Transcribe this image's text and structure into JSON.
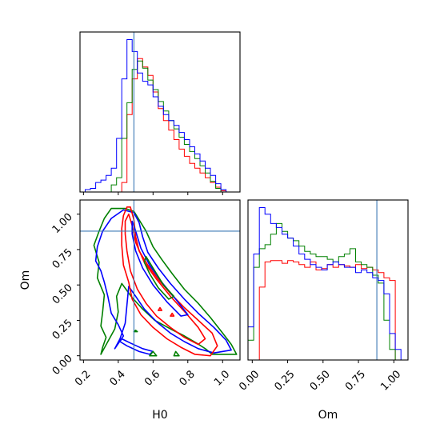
{
  "chart_data": {
    "type": "corner",
    "parameters": [
      "H0",
      "Om"
    ],
    "truths": {
      "H0": 0.49,
      "Om": 0.88
    },
    "colors": {
      "red": "#ff0000",
      "green": "#008000",
      "blue": "#0000ff",
      "truth": "#3b78b5"
    },
    "axes": {
      "H0": {
        "label": "H0",
        "range": [
          0.18,
          1.1
        ],
        "ticks": [
          0.2,
          0.4,
          0.6,
          0.8,
          1.0
        ],
        "tick_labels": [
          "0.2",
          "0.4",
          "0.6",
          "0.8",
          "1.0"
        ]
      },
      "Om": {
        "label": "Om",
        "range": [
          -0.03,
          1.1
        ],
        "ticks": [
          0.0,
          0.25,
          0.5,
          0.75,
          1.0
        ],
        "tick_labels": [
          "0.00",
          "0.25",
          "0.50",
          "0.75",
          "1.00"
        ]
      }
    },
    "histograms": {
      "H0": {
        "bin_edges": [
          0.18,
          0.21,
          0.24,
          0.27,
          0.3,
          0.33,
          0.36,
          0.39,
          0.42,
          0.45,
          0.48,
          0.51,
          0.54,
          0.57,
          0.6,
          0.63,
          0.66,
          0.69,
          0.72,
          0.75,
          0.78,
          0.81,
          0.84,
          0.87,
          0.9,
          0.93,
          0.96,
          0.99,
          1.02,
          1.05,
          1.08
        ],
        "series": [
          {
            "color": "red",
            "counts": [
              0,
              0,
              0,
              0,
              0,
              0,
              0,
              0,
              8,
              65,
              95,
              112,
              105,
              98,
              84,
              70,
              60,
              52,
              44,
              36,
              30,
              24,
              20,
              16,
              12,
              8,
              4,
              1,
              0,
              0
            ]
          },
          {
            "color": "green",
            "counts": [
              0,
              0,
              0,
              0,
              0,
              0,
              6,
              12,
              45,
              75,
              103,
              110,
              104,
              94,
              86,
              76,
              68,
              60,
              53,
              46,
              40,
              34,
              28,
              22,
              16,
              9,
              3,
              0,
              0,
              0
            ]
          },
          {
            "color": "blue",
            "counts": [
              0,
              2,
              3,
              8,
              10,
              14,
              20,
              45,
              95,
              128,
              118,
              100,
              93,
              90,
              80,
              72,
              65,
              60,
              56,
              50,
              44,
              38,
              32,
              26,
              20,
              14,
              7,
              2,
              0,
              0
            ]
          }
        ]
      },
      "Om": {
        "bin_edges": [
          -0.03,
          0.01,
          0.05,
          0.09,
          0.13,
          0.17,
          0.21,
          0.25,
          0.29,
          0.33,
          0.37,
          0.41,
          0.45,
          0.49,
          0.53,
          0.57,
          0.61,
          0.65,
          0.69,
          0.73,
          0.77,
          0.81,
          0.85,
          0.89,
          0.93,
          0.97,
          1.01,
          1.05,
          1.09
        ],
        "series": [
          {
            "color": "red",
            "counts": [
              0,
              0,
              55,
              74,
              75,
              75,
              73,
              75,
              74,
              72,
              70,
              74,
              68,
              69,
              72,
              70,
              72,
              71,
              70,
              72,
              69,
              70,
              68,
              66,
              62,
              60,
              0,
              0
            ]
          },
          {
            "color": "green",
            "counts": [
              15,
              70,
              84,
              87,
              95,
              103,
              97,
              92,
              90,
              86,
              82,
              80,
              78,
              78,
              76,
              74,
              78,
              80,
              84,
              74,
              72,
              70,
              64,
              58,
              30,
              8,
              0,
              0
            ]
          },
          {
            "color": "blue",
            "counts": [
              25,
              80,
              115,
              110,
              103,
              100,
              95,
              92,
              86,
              80,
              76,
              72,
              70,
              68,
              72,
              74,
              72,
              70,
              70,
              66,
              68,
              66,
              62,
              60,
              50,
              20,
              8,
              0
            ]
          }
        ]
      }
    },
    "contours": [
      {
        "color": "green",
        "points": [
          [
            0.3,
            0.01
          ],
          [
            0.31,
            0.06
          ],
          [
            0.33,
            0.13
          ],
          [
            0.3,
            0.21
          ],
          [
            0.31,
            0.31
          ],
          [
            0.32,
            0.43
          ],
          [
            0.28,
            0.55
          ],
          [
            0.29,
            0.66
          ],
          [
            0.26,
            0.78
          ],
          [
            0.29,
            0.88
          ],
          [
            0.32,
            0.97
          ],
          [
            0.36,
            1.04
          ],
          [
            0.44,
            1.04
          ],
          [
            0.49,
            1.02
          ],
          [
            0.52,
            0.96
          ],
          [
            0.56,
            0.88
          ],
          [
            0.6,
            0.77
          ],
          [
            0.65,
            0.68
          ],
          [
            0.71,
            0.58
          ],
          [
            0.78,
            0.47
          ],
          [
            0.86,
            0.37
          ],
          [
            0.93,
            0.27
          ],
          [
            1.0,
            0.16
          ],
          [
            1.05,
            0.08
          ],
          [
            1.08,
            0.01
          ],
          [
            0.94,
            0.01
          ],
          [
            0.9,
            0.05
          ],
          [
            0.85,
            0.09
          ],
          [
            0.78,
            0.14
          ],
          [
            0.7,
            0.19
          ],
          [
            0.61,
            0.25
          ],
          [
            0.54,
            0.33
          ],
          [
            0.48,
            0.41
          ],
          [
            0.42,
            0.51
          ],
          [
            0.39,
            0.42
          ],
          [
            0.4,
            0.31
          ],
          [
            0.38,
            0.19
          ],
          [
            0.34,
            0.1
          ],
          [
            0.3,
            0.01
          ]
        ]
      },
      {
        "color": "blue",
        "points": [
          [
            0.38,
            0.05
          ],
          [
            0.43,
            0.14
          ],
          [
            0.4,
            0.22
          ],
          [
            0.36,
            0.3
          ],
          [
            0.34,
            0.42
          ],
          [
            0.32,
            0.52
          ],
          [
            0.3,
            0.6
          ],
          [
            0.27,
            0.67
          ],
          [
            0.28,
            0.77
          ],
          [
            0.31,
            0.88
          ],
          [
            0.36,
            0.97
          ],
          [
            0.43,
            1.03
          ],
          [
            0.49,
            1.01
          ],
          [
            0.52,
            0.94
          ],
          [
            0.54,
            0.84
          ],
          [
            0.57,
            0.73
          ],
          [
            0.63,
            0.62
          ],
          [
            0.7,
            0.51
          ],
          [
            0.78,
            0.4
          ],
          [
            0.86,
            0.3
          ],
          [
            0.95,
            0.2
          ],
          [
            1.02,
            0.11
          ],
          [
            1.05,
            0.04
          ],
          [
            0.95,
            0.02
          ],
          [
            0.86,
            0.05
          ],
          [
            0.78,
            0.1
          ],
          [
            0.7,
            0.16
          ],
          [
            0.62,
            0.24
          ],
          [
            0.55,
            0.33
          ],
          [
            0.5,
            0.42
          ],
          [
            0.46,
            0.49
          ],
          [
            0.45,
            0.36
          ],
          [
            0.44,
            0.23
          ],
          [
            0.41,
            0.12
          ],
          [
            0.38,
            0.05
          ]
        ]
      },
      {
        "color": "red",
        "points": [
          [
            0.43,
            0.99
          ],
          [
            0.45,
            1.05
          ],
          [
            0.47,
            1.05
          ],
          [
            0.49,
            0.96
          ],
          [
            0.5,
            0.84
          ],
          [
            0.52,
            0.74
          ],
          [
            0.57,
            0.64
          ],
          [
            0.63,
            0.54
          ],
          [
            0.7,
            0.44
          ],
          [
            0.78,
            0.34
          ],
          [
            0.86,
            0.25
          ],
          [
            0.94,
            0.16
          ],
          [
            0.97,
            0.07
          ],
          [
            0.93,
            0.0
          ],
          [
            0.84,
            0.01
          ],
          [
            0.76,
            0.06
          ],
          [
            0.68,
            0.12
          ],
          [
            0.6,
            0.2
          ],
          [
            0.53,
            0.29
          ],
          [
            0.48,
            0.4
          ],
          [
            0.46,
            0.52
          ],
          [
            0.43,
            0.64
          ],
          [
            0.42,
            0.78
          ],
          [
            0.42,
            0.9
          ],
          [
            0.43,
            0.99
          ]
        ]
      },
      {
        "color": "red",
        "points": [
          [
            0.44,
            0.95
          ],
          [
            0.46,
            1.0
          ],
          [
            0.48,
            0.92
          ],
          [
            0.5,
            0.8
          ],
          [
            0.55,
            0.66
          ],
          [
            0.62,
            0.54
          ],
          [
            0.7,
            0.42
          ],
          [
            0.79,
            0.3
          ],
          [
            0.86,
            0.2
          ],
          [
            0.9,
            0.12
          ],
          [
            0.86,
            0.08
          ],
          [
            0.78,
            0.13
          ],
          [
            0.7,
            0.2
          ],
          [
            0.62,
            0.28
          ],
          [
            0.56,
            0.37
          ],
          [
            0.51,
            0.47
          ],
          [
            0.47,
            0.6
          ],
          [
            0.45,
            0.74
          ],
          [
            0.44,
            0.86
          ],
          [
            0.44,
            0.95
          ]
        ]
      },
      {
        "color": "blue",
        "points": [
          [
            0.48,
            0.95
          ],
          [
            0.5,
            0.88
          ],
          [
            0.53,
            0.76
          ],
          [
            0.58,
            0.64
          ],
          [
            0.65,
            0.52
          ],
          [
            0.73,
            0.4
          ],
          [
            0.8,
            0.29
          ],
          [
            0.76,
            0.28
          ],
          [
            0.68,
            0.38
          ],
          [
            0.6,
            0.5
          ],
          [
            0.54,
            0.62
          ],
          [
            0.5,
            0.74
          ],
          [
            0.48,
            0.86
          ],
          [
            0.48,
            0.95
          ]
        ]
      },
      {
        "color": "green",
        "points": [
          [
            0.56,
            0.7
          ],
          [
            0.6,
            0.62
          ],
          [
            0.66,
            0.5
          ],
          [
            0.72,
            0.42
          ],
          [
            0.69,
            0.4
          ],
          [
            0.63,
            0.48
          ],
          [
            0.58,
            0.58
          ],
          [
            0.55,
            0.66
          ],
          [
            0.56,
            0.7
          ]
        ]
      },
      {
        "color": "blue",
        "points": [
          [
            0.41,
            0.1
          ],
          [
            0.45,
            0.07
          ],
          [
            0.52,
            0.03
          ],
          [
            0.58,
            0.01
          ],
          [
            0.6,
            0.03
          ],
          [
            0.54,
            0.05
          ],
          [
            0.47,
            0.09
          ],
          [
            0.42,
            0.12
          ],
          [
            0.41,
            0.1
          ]
        ]
      },
      {
        "color": "green",
        "points": [
          [
            0.58,
            0.0
          ],
          [
            0.6,
            0.03
          ],
          [
            0.62,
            0.0
          ],
          [
            0.58,
            0.0
          ]
        ]
      },
      {
        "color": "green",
        "points": [
          [
            0.72,
            0.0
          ],
          [
            0.73,
            0.03
          ],
          [
            0.75,
            0.0
          ],
          [
            0.72,
            0.0
          ]
        ]
      },
      {
        "color": "red",
        "points": [
          [
            0.63,
            0.32
          ],
          [
            0.64,
            0.34
          ],
          [
            0.65,
            0.32
          ],
          [
            0.63,
            0.32
          ]
        ]
      },
      {
        "color": "red",
        "points": [
          [
            0.7,
            0.28
          ],
          [
            0.71,
            0.3
          ],
          [
            0.72,
            0.28
          ],
          [
            0.7,
            0.28
          ]
        ]
      },
      {
        "color": "green",
        "points": [
          [
            0.49,
            0.17
          ],
          [
            0.5,
            0.18
          ],
          [
            0.51,
            0.17
          ],
          [
            0.49,
            0.17
          ]
        ]
      }
    ]
  }
}
